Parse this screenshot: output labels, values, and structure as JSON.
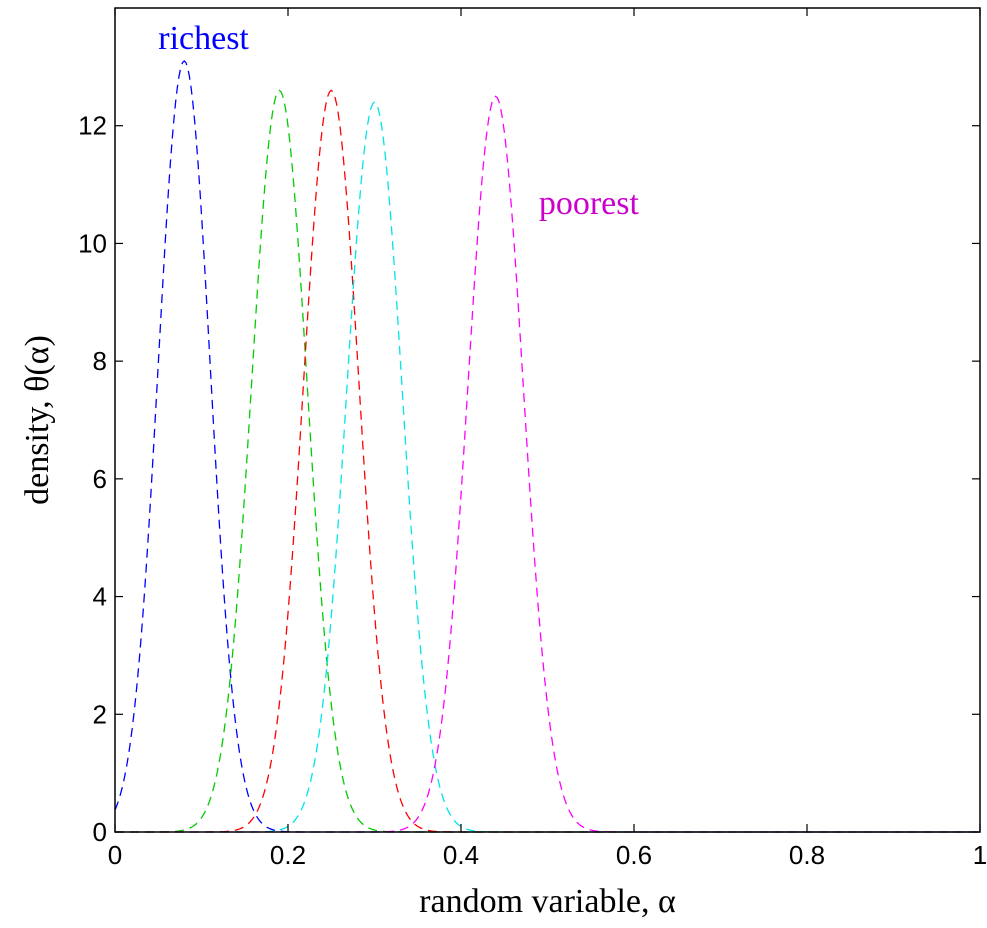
{
  "chart_data": {
    "type": "line",
    "title": "",
    "xlabel": "random variable, α",
    "ylabel": "density, θ(α)",
    "xlim": [
      0,
      1
    ],
    "ylim": [
      0,
      14
    ],
    "xticks": [
      0,
      0.2,
      0.4,
      0.6,
      0.8,
      1
    ],
    "xtick_labels": [
      "0",
      "0.2",
      "0.4",
      "0.6",
      "0.8",
      "1"
    ],
    "yticks": [
      0,
      2,
      4,
      6,
      8,
      10,
      12
    ],
    "ytick_labels": [
      "0",
      "2",
      "4",
      "6",
      "8",
      "10",
      "12"
    ],
    "grid": false,
    "line_style": "dashed",
    "series": [
      {
        "color": "#0000ff",
        "mean": 0.08,
        "peak": 13.1,
        "sd": 0.03
      },
      {
        "color": "#00cc00",
        "mean": 0.19,
        "peak": 12.6,
        "sd": 0.032
      },
      {
        "color": "#ff0000",
        "mean": 0.25,
        "peak": 12.6,
        "sd": 0.032
      },
      {
        "color": "#00e5e5",
        "mean": 0.3,
        "peak": 12.4,
        "sd": 0.032
      },
      {
        "color": "#ff00ff",
        "mean": 0.44,
        "peak": 12.5,
        "sd": 0.032
      }
    ],
    "annotations": [
      {
        "text": "richest",
        "x": 0.05,
        "y": 13.3,
        "color": "#0000ff"
      },
      {
        "text": "poorest",
        "x": 0.49,
        "y": 10.5,
        "color": "#cc00cc"
      }
    ]
  }
}
